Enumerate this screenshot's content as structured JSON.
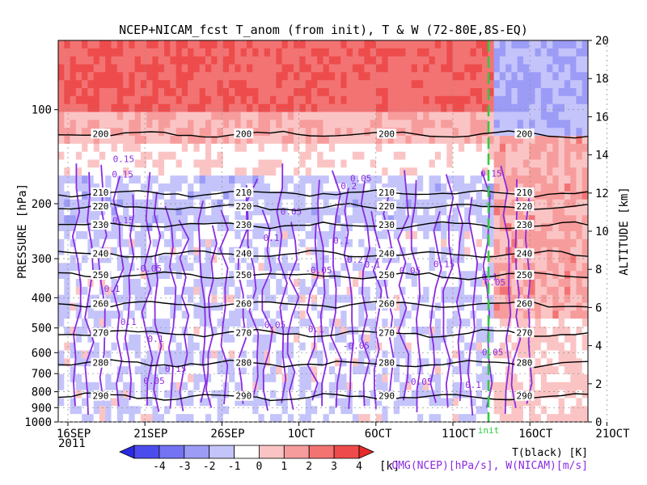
{
  "chart_data": {
    "type": "heatmap",
    "title": "NCEP+NICAM_fcst T_anom (from init), T & W  (72-80E,8S-EQ)",
    "ylabel": "PRESSURE [hPa]",
    "y2label": "ALTITUDE [km]",
    "x_ticks": [
      "16SEP",
      "21SEP",
      "26SEP",
      "1OCT",
      "6OCT",
      "11OCT",
      "16OCT",
      "21OCT"
    ],
    "x_year": "2011",
    "y_ticks": [
      1000,
      900,
      800,
      700,
      600,
      500,
      400,
      300,
      200,
      100
    ],
    "y2_ticks": [
      0,
      2,
      4,
      6,
      8,
      10,
      12,
      14,
      16,
      18,
      20
    ],
    "init_label": "init",
    "colorbar": {
      "ticks": [
        -4,
        -3,
        -2,
        -1,
        0,
        1,
        2,
        3,
        4
      ],
      "unit": "[k]",
      "colors": [
        "#2a2ae6",
        "#4c4cee",
        "#7373f3",
        "#9c9cf7",
        "#c4c4fb",
        "#ffffff",
        "#fbc4c4",
        "#f79c9c",
        "#f37373",
        "#ee4c4c",
        "#e62a2a"
      ]
    },
    "legend": {
      "line1": "T(black) [K]",
      "line2": "-OMG(NCEP)[hPa/s], W(NICAM)[m/s]"
    },
    "temperature_contours": [
      {
        "level": 200,
        "label": "200",
        "pressure": 120
      },
      {
        "level": 210,
        "label": "210",
        "pressure": 185
      },
      {
        "level": 220,
        "label": "220",
        "pressure": 205
      },
      {
        "level": 230,
        "label": "230",
        "pressure": 235
      },
      {
        "level": 240,
        "label": "240",
        "pressure": 290
      },
      {
        "level": 250,
        "label": "250",
        "pressure": 340
      },
      {
        "level": 260,
        "label": "260",
        "pressure": 420
      },
      {
        "level": 270,
        "label": "270",
        "pressure": 520
      },
      {
        "level": 280,
        "label": "280",
        "pressure": 650
      },
      {
        "level": 290,
        "label": "290",
        "pressure": 830
      }
    ],
    "w_contour_labels": [
      "0.05",
      "0.1",
      "0.15",
      "0.2",
      "-0.05"
    ],
    "colors": {
      "temperature": "#000000",
      "vertical_velocity": "#8a2be2",
      "init_line": "#2ecc40"
    }
  }
}
